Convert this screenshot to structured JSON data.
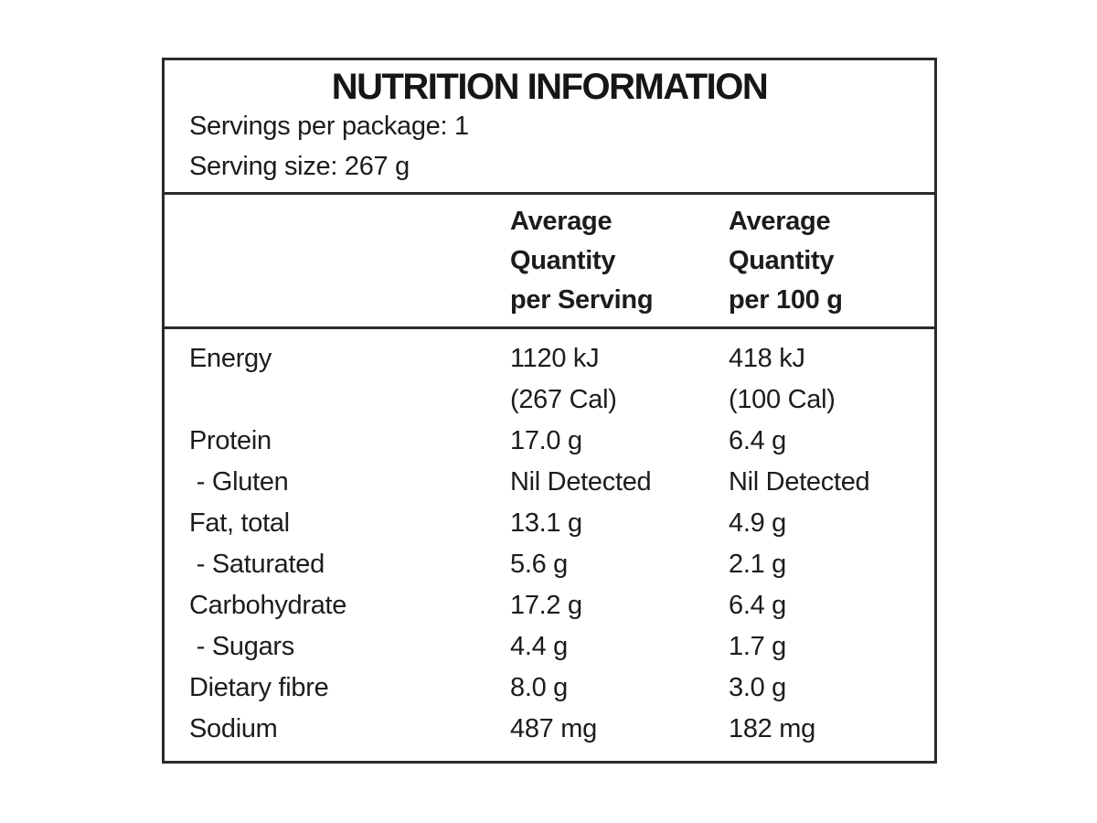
{
  "panel": {
    "title": "NUTRITION INFORMATION",
    "servings_per_package": "Servings per package: 1",
    "serving_size": "Serving size: 267 g",
    "columns": {
      "serving": "Average\nQuantity\nper Serving",
      "per100g": "Average\nQuantity\nper 100 g"
    },
    "rows": [
      {
        "label": "Energy",
        "serving": "1120 kJ",
        "per100g": "418 kJ"
      },
      {
        "label": "",
        "serving": "(267 Cal)",
        "per100g": "(100 Cal)"
      },
      {
        "label": "Protein",
        "serving": "17.0 g",
        "per100g": "6.4 g"
      },
      {
        "label": " - Gluten",
        "serving": "Nil Detected",
        "per100g": "Nil Detected"
      },
      {
        "label": "Fat, total",
        "serving": "13.1 g",
        "per100g": "4.9 g"
      },
      {
        "label": " - Saturated",
        "serving": "5.6 g",
        "per100g": "2.1 g"
      },
      {
        "label": "Carbohydrate",
        "serving": "17.2 g",
        "per100g": "6.4 g"
      },
      {
        "label": " - Sugars",
        "serving": "4.4 g",
        "per100g": "1.7 g"
      },
      {
        "label": "Dietary fibre",
        "serving": "8.0 g",
        "per100g": "3.0 g"
      },
      {
        "label": "Sodium",
        "serving": "487 mg",
        "per100g": "182 mg"
      }
    ],
    "colors": {
      "border": "#2b2b2b",
      "text": "#1c1c1c",
      "background": "#ffffff"
    }
  }
}
